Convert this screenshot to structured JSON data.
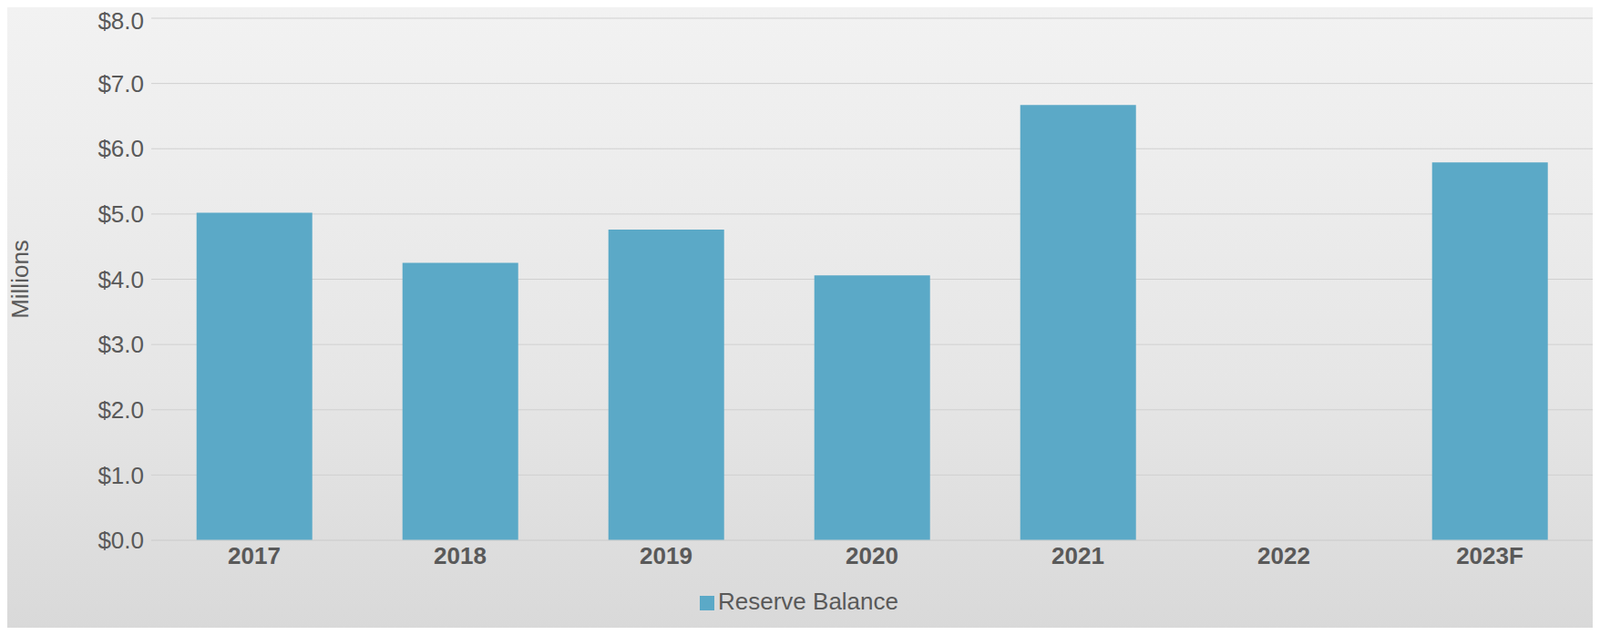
{
  "chart_data": {
    "type": "bar",
    "y_label": "Millions",
    "categories": [
      "2017",
      "2018",
      "2019",
      "2020",
      "2021",
      "2022",
      "2023F"
    ],
    "series": [
      {
        "name": "Reserve Balance",
        "color": "#5ba9c7",
        "values": [
          5.02,
          4.25,
          4.76,
          4.06,
          6.67,
          null,
          5.79
        ]
      }
    ],
    "ylim": [
      0,
      8
    ],
    "yticks": [
      {
        "value": 0,
        "label": "$0.0"
      },
      {
        "value": 1,
        "label": "$1.0"
      },
      {
        "value": 2,
        "label": "$2.0"
      },
      {
        "value": 3,
        "label": "$3.0"
      },
      {
        "value": 4,
        "label": "$4.0"
      },
      {
        "value": 5,
        "label": "$5.0"
      },
      {
        "value": 6,
        "label": "$6.0"
      },
      {
        "value": 7,
        "label": "$7.0"
      },
      {
        "value": 8,
        "label": "$8.0"
      }
    ],
    "grid": true,
    "legend": "bottom"
  }
}
